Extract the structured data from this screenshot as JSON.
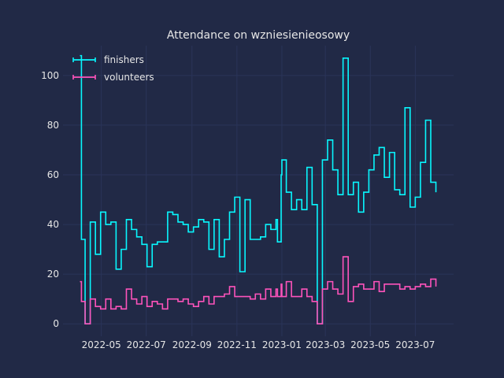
{
  "chart_data": {
    "type": "line",
    "step": "post",
    "title": "Attendance on wzniesienieosowy",
    "xlabel": "",
    "ylabel": "",
    "grid": true,
    "legend_position": "top-left",
    "xlim": [
      "2022-03-10",
      "2023-08-22"
    ],
    "ylim": [
      -5,
      112
    ],
    "y_ticks": [
      0,
      20,
      40,
      60,
      80,
      100
    ],
    "x_ticks": [
      {
        "date": "2022-05-01",
        "label": "2022-05"
      },
      {
        "date": "2022-07-01",
        "label": "2022-07"
      },
      {
        "date": "2022-09-01",
        "label": "2022-09"
      },
      {
        "date": "2022-11-01",
        "label": "2022-11"
      },
      {
        "date": "2023-01-01",
        "label": "2023-01"
      },
      {
        "date": "2023-03-01",
        "label": "2023-03"
      },
      {
        "date": "2023-05-01",
        "label": "2023-05"
      },
      {
        "date": "2023-07-01",
        "label": "2023-07"
      }
    ],
    "dates": [
      "2022-04-02",
      "2022-04-04",
      "2022-04-09",
      "2022-04-16",
      "2022-04-23",
      "2022-04-30",
      "2022-05-07",
      "2022-05-14",
      "2022-05-21",
      "2022-05-28",
      "2022-06-04",
      "2022-06-11",
      "2022-06-18",
      "2022-06-25",
      "2022-07-02",
      "2022-07-09",
      "2022-07-16",
      "2022-07-23",
      "2022-07-30",
      "2022-08-06",
      "2022-08-13",
      "2022-08-20",
      "2022-08-27",
      "2022-09-03",
      "2022-09-10",
      "2022-09-17",
      "2022-09-24",
      "2022-10-01",
      "2022-10-08",
      "2022-10-15",
      "2022-10-22",
      "2022-10-29",
      "2022-11-05",
      "2022-11-12",
      "2022-11-19",
      "2022-11-26",
      "2022-12-03",
      "2022-12-10",
      "2022-12-17",
      "2022-12-24",
      "2022-12-26",
      "2022-12-31",
      "2023-01-01",
      "2023-01-07",
      "2023-01-14",
      "2023-01-21",
      "2023-01-28",
      "2023-02-04",
      "2023-02-11",
      "2023-02-18",
      "2023-02-25",
      "2023-03-04",
      "2023-03-11",
      "2023-03-18",
      "2023-03-25",
      "2023-04-01",
      "2023-04-08",
      "2023-04-15",
      "2023-04-22",
      "2023-04-29",
      "2023-05-06",
      "2023-05-13",
      "2023-05-20",
      "2023-05-27",
      "2023-06-03",
      "2023-06-10",
      "2023-06-17",
      "2023-06-24",
      "2023-07-01",
      "2023-07-08",
      "2023-07-15",
      "2023-07-22",
      "2023-07-29"
    ],
    "series": [
      {
        "name": "finishers",
        "color": "#08F7FE",
        "values": [
          108,
          34,
          0,
          41,
          28,
          45,
          40,
          41,
          22,
          30,
          42,
          38,
          35,
          32,
          23,
          32,
          33,
          33,
          45,
          44,
          41,
          40,
          37,
          39,
          42,
          41,
          30,
          42,
          27,
          34,
          45,
          51,
          21,
          50,
          34,
          34,
          35,
          40,
          38,
          42,
          33,
          60,
          66,
          53,
          46,
          50,
          46,
          63,
          48,
          0,
          66,
          74,
          62,
          52,
          107,
          52,
          57,
          45,
          53,
          62,
          68,
          71,
          59,
          69,
          54,
          52,
          87,
          47,
          51,
          65,
          82,
          57,
          53
        ]
      },
      {
        "name": "volunteers",
        "color": "#FE53BB",
        "values": [
          17,
          9,
          0,
          10,
          7,
          6,
          10,
          6,
          7,
          6,
          14,
          10,
          8,
          11,
          7,
          9,
          8,
          6,
          10,
          10,
          9,
          10,
          8,
          7,
          9,
          11,
          8,
          11,
          11,
          12,
          15,
          11,
          11,
          11,
          10,
          12,
          10,
          14,
          11,
          14,
          11,
          16,
          11,
          17,
          11,
          11,
          14,
          11,
          9,
          0,
          14,
          17,
          14,
          12,
          27,
          9,
          15,
          16,
          14,
          14,
          17,
          13,
          16,
          16,
          16,
          14,
          15,
          14,
          15,
          16,
          15,
          18,
          15
        ]
      }
    ]
  }
}
